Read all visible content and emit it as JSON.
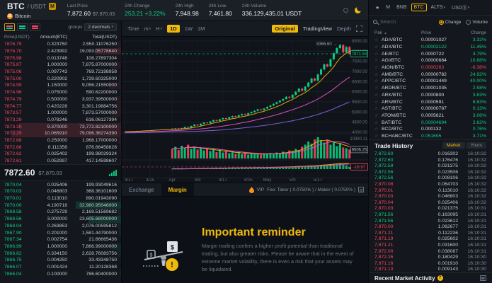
{
  "header": {
    "symbol": "BTC",
    "quote": "/ USDT",
    "badge": "M",
    "coin_icon": "B",
    "coin_name": "Bitcoin",
    "stats": [
      {
        "label": "Last Price",
        "value": "7,872.60",
        "sub": "$7,870.03"
      },
      {
        "label": "24h Change",
        "value": "253.21 +3.22%",
        "color": "g"
      },
      {
        "label": "24h High",
        "value": "7,948.98"
      },
      {
        "label": "24h Low",
        "value": "7,461.80"
      },
      {
        "label": "24h Volume",
        "value": "336,129,435.01 USDT"
      }
    ]
  },
  "orderbook": {
    "group_label": "groups",
    "decimals_label": "2 decimals",
    "decimals_caret": "▾",
    "columns": [
      "Price(USDT)",
      "Amount(BTC)",
      "Total(USDT)"
    ],
    "asks": [
      {
        "p": "7876.79",
        "a": "0.323750",
        "t": "2,550.11076250"
      },
      {
        "p": "7876.70",
        "a": "2.423992",
        "t": "19,093.05778640",
        "hl": true
      },
      {
        "p": "7875.98",
        "a": "0.013748",
        "t": "108.27897304"
      },
      {
        "p": "7875.87",
        "a": "1.000000",
        "t": "7,875.87000000"
      },
      {
        "p": "7875.06",
        "a": "0.097743",
        "t": "769.72198958"
      },
      {
        "p": "7875.00",
        "a": "0.220902",
        "t": "1,739.60325000"
      },
      {
        "p": "7874.99",
        "a": "1.150000",
        "t": "9,056.21550000"
      },
      {
        "p": "7874.96",
        "a": "0.075000",
        "t": "590.62200000"
      },
      {
        "p": "7874.79",
        "a": "0.500000",
        "t": "3,937.39500000"
      },
      {
        "p": "7874.77",
        "a": "0.420228",
        "t": "3,301.19884756"
      },
      {
        "p": "7873.57",
        "a": "1.000000",
        "t": "7,873.57000000"
      },
      {
        "p": "7873.29",
        "a": "0.078246",
        "t": "616.06127394"
      },
      {
        "p": "7873.30",
        "a": "9.370000",
        "t": "73,772.82100000",
        "hl": true
      },
      {
        "p": "7873.29",
        "a": "10.065910",
        "t": "79,096.36274390",
        "hl": true
      },
      {
        "p": "7872.68",
        "a": "0.250000",
        "t": "1,968.17000000"
      },
      {
        "p": "7872.68",
        "a": "0.111356",
        "t": "876.66458628"
      },
      {
        "p": "7872.62",
        "a": "0.025402",
        "t": "199.98029324"
      },
      {
        "p": "7872.61",
        "a": "0.052997",
        "t": "417.14598607"
      }
    ],
    "last_price": "7872.60",
    "last_price_usd": "$7,870.03",
    "bids": [
      {
        "p": "7870.04",
        "a": "0.025406",
        "t": "199.93049616"
      },
      {
        "p": "7870.03",
        "a": "0.046803",
        "t": "368.36101609"
      },
      {
        "p": "7870.01",
        "a": "0.113010",
        "t": "890.01943090"
      },
      {
        "p": "7870.00",
        "a": "4.190718",
        "t": "32,980.95046000",
        "hl": true
      },
      {
        "p": "7868.58",
        "a": "0.275729",
        "t": "2,169.51569682"
      },
      {
        "p": "7868.56",
        "a": "3.000000",
        "t": "23,605.68000000",
        "hl": true
      },
      {
        "p": "7868.04",
        "a": "0.263853",
        "t": "2,076.00595812"
      },
      {
        "p": "7867.90",
        "a": "0.201000",
        "t": "1,581.44790000"
      },
      {
        "p": "7867.34",
        "a": "0.002754",
        "t": "21.66665436"
      },
      {
        "p": "7866.99",
        "a": "1.000000",
        "t": "7,866.99000000"
      },
      {
        "p": "7866.82",
        "a": "0.334150",
        "t": "2,628.76083756"
      },
      {
        "p": "7866.75",
        "a": "0.004250",
        "t": "33.43348750"
      },
      {
        "p": "7866.07",
        "a": "0.001424",
        "t": "11.20128368"
      },
      {
        "p": "7866.04",
        "a": "0.100000",
        "t": "786.60400000"
      }
    ]
  },
  "chart": {
    "toolbar": {
      "time_label": "Time",
      "m_label": "m",
      "h_label": "H",
      "d1": "1D",
      "w1": "1W",
      "mo1": "1M",
      "original": "Original",
      "tradingview": "TradingView",
      "depth": "Depth"
    },
    "y_labels": [
      "8500.00",
      "8000.00",
      "7500.00",
      "7000.00",
      "6500.00",
      "6000.00",
      "5500.00",
      "5000.00",
      "4500.00",
      "4000.00"
    ],
    "high_annotation": "8366.60 →",
    "price_tag": "7871.54",
    "vol_max_label": "10980.11",
    "vol_tag": "9505.25",
    "macd_tag": "-16.97",
    "x_labels": [
      {
        "t": "3/17",
        "i": 0
      },
      {
        "t": "3/25",
        "i": 8
      },
      {
        "t": "Apr",
        "i": 15
      },
      {
        "t": "4/9",
        "i": 23
      },
      {
        "t": "4/17",
        "i": 31
      },
      {
        "t": "4/25",
        "i": 39
      },
      {
        "t": "May",
        "i": 45
      },
      {
        "t": "5/9",
        "i": 53
      },
      {
        "t": "5/17",
        "i": 61
      }
    ]
  },
  "chart_data": {
    "type": "candlestick",
    "title": "BTC/USDT 1D",
    "ylim": [
      4000,
      8500
    ],
    "price_line": 7871.54,
    "visible_from": 15,
    "peak_index": 68,
    "peak_high": 8366.6,
    "pre": [
      3980,
      3950,
      3920,
      3960,
      3900,
      3880,
      3920,
      3890,
      3940,
      3910,
      3950,
      3930,
      3970,
      3940,
      3980,
      3960,
      3990,
      3970,
      4000,
      3980,
      4010,
      3990,
      4020,
      4000,
      4030,
      4010,
      4040,
      4020,
      4050,
      4030
    ],
    "closes": [
      4050,
      4080,
      4020,
      4060,
      4100,
      4070,
      4120,
      4090,
      4130,
      4110,
      4150,
      4120,
      4160,
      4140,
      4180,
      4150,
      4190,
      4160,
      4200,
      4260,
      4230,
      4310,
      4380,
      4340,
      4420,
      4480,
      4450,
      4530,
      4600,
      4560,
      4640,
      4700,
      4660,
      4740,
      4800,
      4760,
      4840,
      4900,
      4860,
      4940,
      5000,
      5060,
      5130,
      5090,
      5170,
      5250,
      5320,
      5400,
      5480,
      5560,
      5640,
      5750,
      5700,
      5850,
      6000,
      6150,
      6050,
      6250,
      6450,
      6650,
      6550,
      6850,
      7100,
      7350,
      7250,
      7600,
      7900,
      8150,
      8300,
      7950,
      8200,
      7872
    ],
    "vols": [
      0,
      0,
      0,
      0,
      0,
      0,
      0,
      0,
      0,
      0,
      0,
      0,
      0,
      0,
      0,
      0.45,
      0.55,
      0.4,
      0.6,
      0.5,
      0.65,
      0.45,
      0.55,
      0.42,
      0.5,
      0.38,
      0.48,
      0.35,
      0.45,
      0.3,
      0.4,
      0.28,
      0.35,
      0.25,
      0.32,
      0.22,
      0.3,
      0.2,
      0.28,
      0.18,
      0.25,
      0.2,
      0.22,
      0.18,
      0.24,
      0.2,
      0.26,
      0.22,
      0.28,
      0.25,
      0.32,
      0.28,
      0.38,
      0.35,
      0.45,
      0.4,
      0.55,
      0.65,
      0.8,
      0.7,
      0.9,
      1.0,
      0.85,
      0.75,
      0.88,
      0.65,
      0.78,
      0.58,
      0.7,
      0.52,
      0.48,
      0.42
    ]
  },
  "bottom": {
    "tab_exchange": "Exchange",
    "tab_margin": "Margin",
    "vip_label": "VIP",
    "fee_text": "Fee: Taker ( 0.0750% ) / Maker ( 0.0750% )",
    "reminder_title": "Important reminder",
    "reminder_body": "Margin trading confers a higher profit potential than traditional trading, but also greater risks. Please be aware that in the event of extreme market volatility, there is even a risk that your assets may be liquidated."
  },
  "right": {
    "tabs": [
      {
        "label": "★"
      },
      {
        "label": "M"
      },
      {
        "label": "BNB"
      },
      {
        "label": "BTC",
        "active": true
      },
      {
        "label": "ALTS",
        "caret": true
      },
      {
        "label": "USDⓈ",
        "caret": true
      }
    ],
    "search_placeholder": "Search",
    "radio_change": "Change",
    "radio_volume": "Volume",
    "table_headers": [
      "Pair",
      "Price",
      "Change"
    ],
    "sort_icon": "▲",
    "star_icon": "☆",
    "pairs": [
      {
        "pair": "ADA/BTC",
        "price": "0.00001027",
        "change": "3.32%",
        "pc": "w",
        "cc": "g"
      },
      {
        "pair": "ADX/BTC",
        "price": "0.00002122",
        "change": "11.45%",
        "pc": "g",
        "cc": "g"
      },
      {
        "pair": "AE/BTC",
        "price": "0.0000722",
        "change": "4.79%",
        "pc": "w",
        "cc": "g"
      },
      {
        "pair": "AGI/BTC",
        "price": "0.00000684",
        "change": "10.68%",
        "pc": "w",
        "cc": "g"
      },
      {
        "pair": "AION/BTC",
        "price": "0.0000263",
        "change": "-6.38%",
        "pc": "r",
        "cc": "r"
      },
      {
        "pair": "AMB/BTC",
        "price": "0.00000782",
        "change": "24.92%",
        "pc": "w",
        "cc": "g"
      },
      {
        "pair": "APPC/BTC",
        "price": "0.00001449",
        "change": "40.00%",
        "pc": "w",
        "cc": "g"
      },
      {
        "pair": "ARDR/BTC",
        "price": "0.00001035",
        "change": "2.58%",
        "pc": "w",
        "cc": "g"
      },
      {
        "pair": "ARK/BTC",
        "price": "0.0000800",
        "change": "3.63%",
        "pc": "w",
        "cc": "g"
      },
      {
        "pair": "ARN/BTC",
        "price": "0.0000591",
        "change": "6.63%",
        "pc": "w",
        "cc": "g"
      },
      {
        "pair": "AST/BTC",
        "price": "0.00000787",
        "change": "0.13%",
        "pc": "w",
        "cc": "g"
      },
      {
        "pair": "ATOM/BTC",
        "price": "0.0005621",
        "change": "3.06%",
        "pc": "w",
        "cc": "g"
      },
      {
        "pair": "BAT/BTC",
        "price": "0.00004694",
        "change": "2.62%",
        "pc": "g",
        "cc": "g"
      },
      {
        "pair": "BCD/BTC",
        "price": "0.000132",
        "change": "0.76%",
        "pc": "w",
        "cc": "g"
      },
      {
        "pair": "BCHABC/BTC",
        "price": "0.051695",
        "change": "3.71%",
        "pc": "g",
        "cc": "g"
      }
    ],
    "trade_history": {
      "title": "Trade History",
      "tab_market": "Market",
      "tab_yours": "Yours",
      "rows": [
        {
          "p": "7,872.60",
          "a": "0.016302",
          "t": "16:10:32",
          "c": "g"
        },
        {
          "p": "7,872.60",
          "a": "0.176476",
          "t": "16:10:32",
          "c": "g"
        },
        {
          "p": "7,872.58",
          "a": "0.021375",
          "t": "16:10:32",
          "c": "g"
        },
        {
          "p": "7,872.56",
          "a": "0.023506",
          "t": "16:10:32",
          "c": "g"
        },
        {
          "p": "7,872.56",
          "a": "0.008106",
          "t": "16:10:32",
          "c": "g"
        },
        {
          "p": "7,870.08",
          "a": "0.064703",
          "t": "16:10:32",
          "c": "r"
        },
        {
          "p": "7,870.01",
          "a": "0.113010",
          "t": "16:10:32",
          "c": "r"
        },
        {
          "p": "7,870.03",
          "a": "0.046803",
          "t": "16:10:32",
          "c": "r"
        },
        {
          "p": "7,870.04",
          "a": "0.025406",
          "t": "16:10:32",
          "c": "r"
        },
        {
          "p": "7,870.03",
          "a": "0.021375",
          "t": "16:10:31",
          "c": "r"
        },
        {
          "p": "7,871.56",
          "a": "0.163095",
          "t": "16:10:31",
          "c": "g"
        },
        {
          "p": "7,871.56",
          "a": "0.023612",
          "t": "16:10:31",
          "c": "g"
        },
        {
          "p": "7,870.00",
          "a": "1.062677",
          "t": "16:10:31",
          "c": "r"
        },
        {
          "p": "7,871.21",
          "a": "0.112236",
          "t": "16:10:31",
          "c": "r"
        },
        {
          "p": "7,871.19",
          "a": "0.025602",
          "t": "16:10:31",
          "c": "r"
        },
        {
          "p": "7,871.21",
          "a": "0.031600",
          "t": "16:10:31",
          "c": "r"
        },
        {
          "p": "7,872.00",
          "a": "0.038087",
          "t": "16:10:31",
          "c": "r"
        },
        {
          "p": "7,872.26",
          "a": "0.180429",
          "t": "16:10:30",
          "c": "r"
        },
        {
          "p": "7,871.16",
          "a": "0.001910",
          "t": "16:10:30",
          "c": "r"
        },
        {
          "p": "7,871.13",
          "a": "0.009143",
          "t": "16:10:30",
          "c": "r"
        }
      ]
    },
    "footer_label": "Recent Market Activity"
  }
}
